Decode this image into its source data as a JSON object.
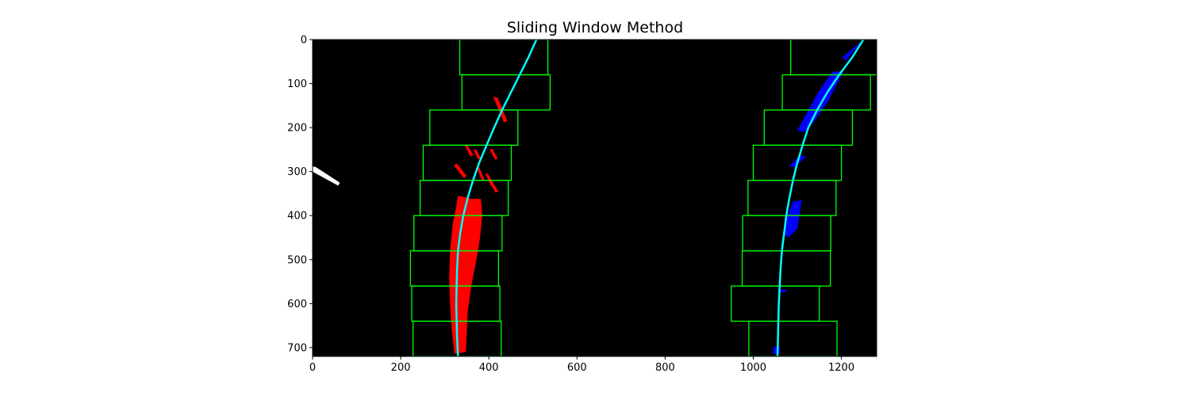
{
  "chart_data": {
    "type": "image-overlay",
    "title": "Sliding Window Method",
    "xlabel": "",
    "ylabel": "",
    "xlim": [
      0,
      1280
    ],
    "ylim": [
      720,
      0
    ],
    "x_ticks": [
      0,
      200,
      400,
      600,
      800,
      1000,
      1200
    ],
    "y_ticks": [
      0,
      100,
      200,
      300,
      400,
      500,
      600,
      700
    ],
    "grid": false,
    "colors": {
      "background": "#000000",
      "window": "#00ff00",
      "left_pixels": "#ff0000",
      "right_pixels": "#0000ff",
      "fit_line": "#00ffff",
      "noise": "#ffffff"
    },
    "left_windows": [
      {
        "x1": 334,
        "x2": 534,
        "y1": 0,
        "y2": 80
      },
      {
        "x1": 339,
        "x2": 539,
        "y1": 80,
        "y2": 160
      },
      {
        "x1": 266,
        "x2": 466,
        "y1": 160,
        "y2": 240
      },
      {
        "x1": 251,
        "x2": 451,
        "y1": 240,
        "y2": 320
      },
      {
        "x1": 244,
        "x2": 444,
        "y1": 320,
        "y2": 400
      },
      {
        "x1": 230,
        "x2": 430,
        "y1": 400,
        "y2": 480
      },
      {
        "x1": 222,
        "x2": 422,
        "y1": 480,
        "y2": 560
      },
      {
        "x1": 225,
        "x2": 425,
        "y1": 560,
        "y2": 640
      },
      {
        "x1": 228,
        "x2": 428,
        "y1": 640,
        "y2": 720
      }
    ],
    "right_windows": [
      {
        "x1": 1085,
        "x2": 1285,
        "y1": 0,
        "y2": 80
      },
      {
        "x1": 1066,
        "x2": 1266,
        "y1": 80,
        "y2": 160
      },
      {
        "x1": 1025,
        "x2": 1225,
        "y1": 160,
        "y2": 240
      },
      {
        "x1": 1000,
        "x2": 1200,
        "y1": 240,
        "y2": 320
      },
      {
        "x1": 988,
        "x2": 1188,
        "y1": 320,
        "y2": 400
      },
      {
        "x1": 976,
        "x2": 1176,
        "y1": 400,
        "y2": 480
      },
      {
        "x1": 975,
        "x2": 1175,
        "y1": 480,
        "y2": 560
      },
      {
        "x1": 950,
        "x2": 1150,
        "y1": 560,
        "y2": 640
      },
      {
        "x1": 990,
        "x2": 1190,
        "y1": 640,
        "y2": 720
      }
    ],
    "left_pixel_regions": [
      [
        [
          330,
          355
        ],
        [
          362,
          362
        ],
        [
          382,
          362
        ],
        [
          385,
          400
        ],
        [
          380,
          450
        ],
        [
          372,
          500
        ],
        [
          360,
          560
        ],
        [
          352,
          620
        ],
        [
          348,
          710
        ],
        [
          322,
          714
        ],
        [
          316,
          660
        ],
        [
          312,
          600
        ],
        [
          310,
          540
        ],
        [
          312,
          480
        ],
        [
          318,
          420
        ],
        [
          326,
          380
        ]
      ],
      [
        [
          410,
          130
        ],
        [
          420,
          132
        ],
        [
          442,
          185
        ],
        [
          434,
          188
        ]
      ],
      [
        [
          345,
          240
        ],
        [
          350,
          238
        ],
        [
          365,
          262
        ],
        [
          358,
          266
        ]
      ],
      [
        [
          365,
          250
        ],
        [
          372,
          250
        ],
        [
          382,
          270
        ],
        [
          375,
          272
        ]
      ],
      [
        [
          402,
          250
        ],
        [
          408,
          248
        ],
        [
          420,
          270
        ],
        [
          414,
          273
        ]
      ],
      [
        [
          320,
          285
        ],
        [
          328,
          282
        ],
        [
          350,
          310
        ],
        [
          343,
          315
        ]
      ],
      [
        [
          372,
          290
        ],
        [
          378,
          290
        ],
        [
          390,
          318
        ],
        [
          384,
          320
        ]
      ],
      [
        [
          392,
          305
        ],
        [
          398,
          305
        ],
        [
          412,
          330
        ],
        [
          405,
          333
        ]
      ],
      [
        [
          400,
          320
        ],
        [
          406,
          320
        ],
        [
          422,
          345
        ],
        [
          415,
          348
        ]
      ]
    ],
    "right_pixel_regions": [
      [
        [
          1232,
          15
        ],
        [
          1245,
          5
        ],
        [
          1210,
          48
        ],
        [
          1202,
          40
        ]
      ],
      [
        [
          1180,
          73
        ],
        [
          1205,
          72
        ],
        [
          1170,
          140
        ],
        [
          1135,
          190
        ],
        [
          1115,
          210
        ],
        [
          1100,
          207
        ],
        [
          1125,
          160
        ],
        [
          1150,
          115
        ]
      ],
      [
        [
          1105,
          263
        ],
        [
          1120,
          265
        ],
        [
          1095,
          290
        ],
        [
          1082,
          288
        ]
      ],
      [
        [
          1090,
          368
        ],
        [
          1110,
          365
        ],
        [
          1105,
          400
        ],
        [
          1100,
          430
        ],
        [
          1080,
          450
        ],
        [
          1068,
          440
        ],
        [
          1078,
          400
        ]
      ],
      [
        [
          1060,
          568
        ],
        [
          1075,
          568
        ],
        [
          1072,
          574
        ],
        [
          1058,
          574
        ]
      ],
      [
        [
          1045,
          698
        ],
        [
          1060,
          698
        ],
        [
          1060,
          714
        ],
        [
          1045,
          714
        ]
      ]
    ],
    "noise_regions": [
      [
        [
          0,
          288
        ],
        [
          8,
          290
        ],
        [
          62,
          325
        ],
        [
          58,
          332
        ],
        [
          0,
          300
        ]
      ]
    ],
    "left_fit": {
      "y": [
        0,
        40,
        80,
        120,
        160,
        200,
        240,
        280,
        320,
        360,
        400,
        440,
        480,
        520,
        560,
        600,
        640,
        680,
        720
      ],
      "x": [
        508,
        490,
        470,
        450,
        430,
        412,
        395,
        378,
        364,
        352,
        342,
        335,
        330,
        328,
        327,
        326,
        327,
        328,
        330
      ]
    },
    "right_fit": {
      "y": [
        0,
        40,
        80,
        120,
        160,
        200,
        240,
        280,
        320,
        360,
        400,
        440,
        480,
        520,
        560,
        600,
        640,
        680,
        720
      ],
      "x": [
        1250,
        1225,
        1195,
        1168,
        1145,
        1125,
        1112,
        1100,
        1090,
        1082,
        1075,
        1070,
        1065,
        1062,
        1060,
        1058,
        1057,
        1056,
        1055
      ]
    }
  }
}
